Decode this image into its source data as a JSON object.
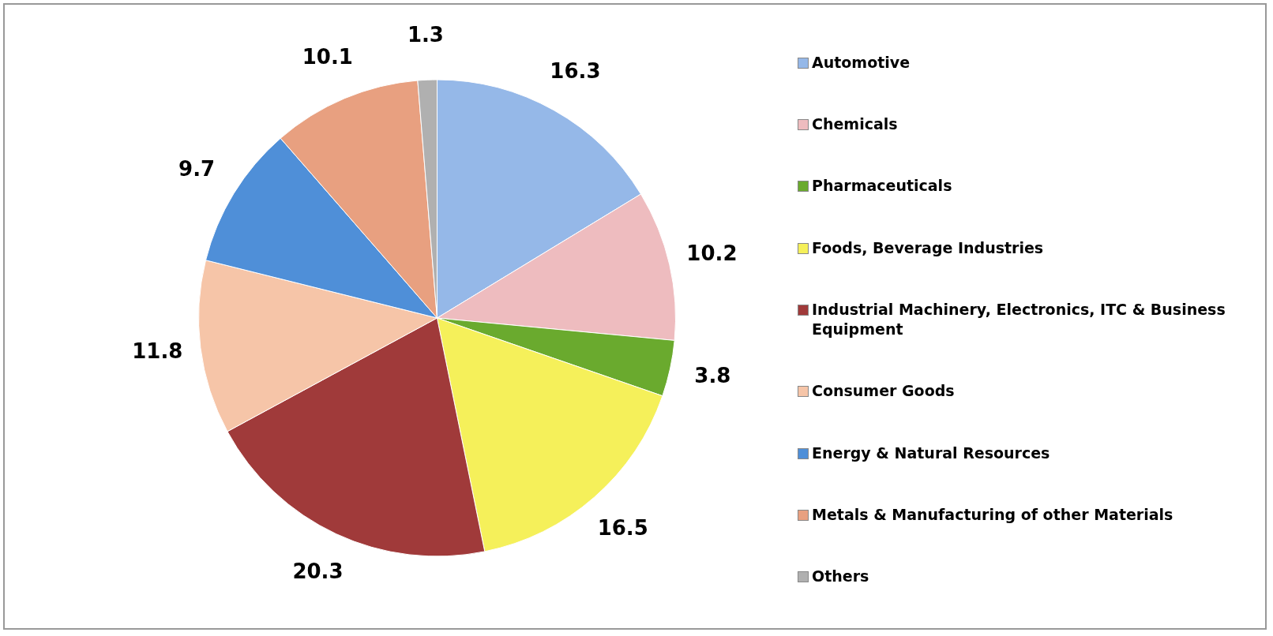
{
  "chart_data": {
    "type": "pie",
    "categories": [
      "Automotive",
      "Chemicals",
      "Pharmaceuticals",
      "Foods, Beverage Industries",
      "Industrial Machinery, Electronics, ITC & Business Equipment",
      "Consumer Goods",
      "Energy & Natural Resources",
      "Metals & Manufacturing of other Materials",
      "Others"
    ],
    "values": [
      16.3,
      10.2,
      3.8,
      16.5,
      20.3,
      11.8,
      9.7,
      10.1,
      1.3
    ],
    "colors": [
      "#95b8e8",
      "#eebcbf",
      "#6aaa2e",
      "#f5f05a",
      "#a03a3a",
      "#f6c5a8",
      "#4f8fd8",
      "#e8a080",
      "#b0b0b0"
    ],
    "data_labels": true,
    "legend": "right"
  }
}
